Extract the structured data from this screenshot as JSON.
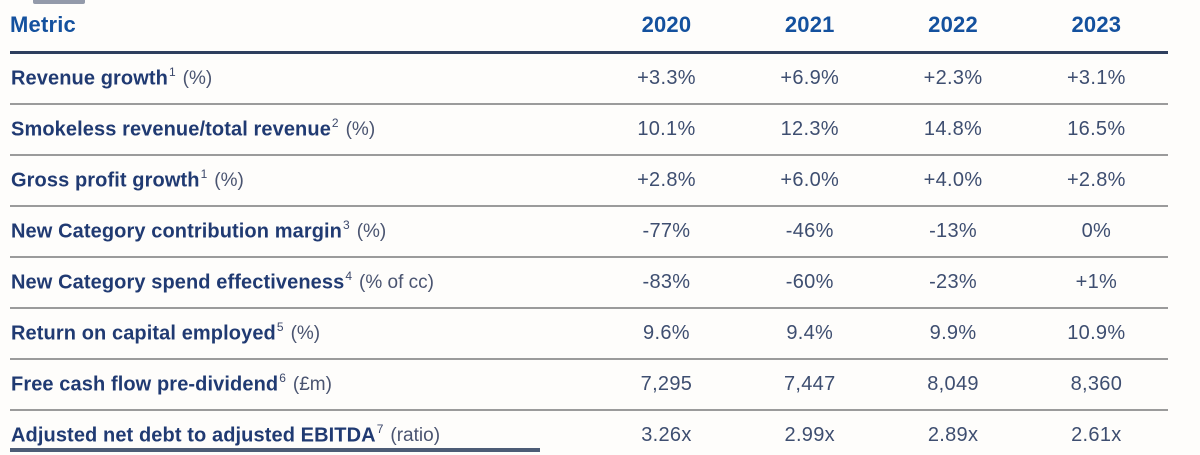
{
  "table": {
    "header": {
      "metric": "Metric",
      "years": [
        "2020",
        "2021",
        "2022",
        "2023"
      ]
    },
    "rows": [
      {
        "label": "Revenue growth",
        "sup": "1",
        "suffix": "(%)",
        "values": [
          "+3.3%",
          "+6.9%",
          "+2.3%",
          "+3.1%"
        ]
      },
      {
        "label": "Smokeless revenue/total revenue",
        "sup": "2",
        "suffix": "(%)",
        "values": [
          "10.1%",
          "12.3%",
          "14.8%",
          "16.5%"
        ]
      },
      {
        "label": "Gross profit growth",
        "sup": "1",
        "suffix": "(%)",
        "values": [
          "+2.8%",
          "+6.0%",
          "+4.0%",
          "+2.8%"
        ]
      },
      {
        "label": "New Category contribution margin",
        "sup": "3",
        "suffix": "(%)",
        "values": [
          "-77%",
          "-46%",
          "-13%",
          "0%"
        ]
      },
      {
        "label": "New Category spend effectiveness",
        "sup": "4",
        "suffix": "(% of cc)",
        "values": [
          "-83%",
          "-60%",
          "-23%",
          "+1%"
        ]
      },
      {
        "label": "Return on capital employed",
        "sup": "5",
        "suffix": "(%)",
        "values": [
          "9.6%",
          "9.4%",
          "9.9%",
          "10.9%"
        ]
      },
      {
        "label": "Free cash flow pre-dividend",
        "sup": "6",
        "suffix": "(£m)",
        "values": [
          "7,295",
          "7,447",
          "8,049",
          "8,360"
        ]
      },
      {
        "label": "Adjusted net debt to adjusted EBITDA",
        "sup": "7",
        "suffix": "(ratio)",
        "values": [
          "3.26x",
          "2.99x",
          "2.89x",
          "2.61x"
        ]
      }
    ],
    "colors": {
      "header_blue": "#14519e",
      "label_navy": "#203a72",
      "value_slate": "#3e4e70",
      "suffix_slate": "#4a5470",
      "header_rule": "#2e3f5e",
      "row_rule": "#9b9b9b",
      "background": "#fefdfb"
    }
  }
}
